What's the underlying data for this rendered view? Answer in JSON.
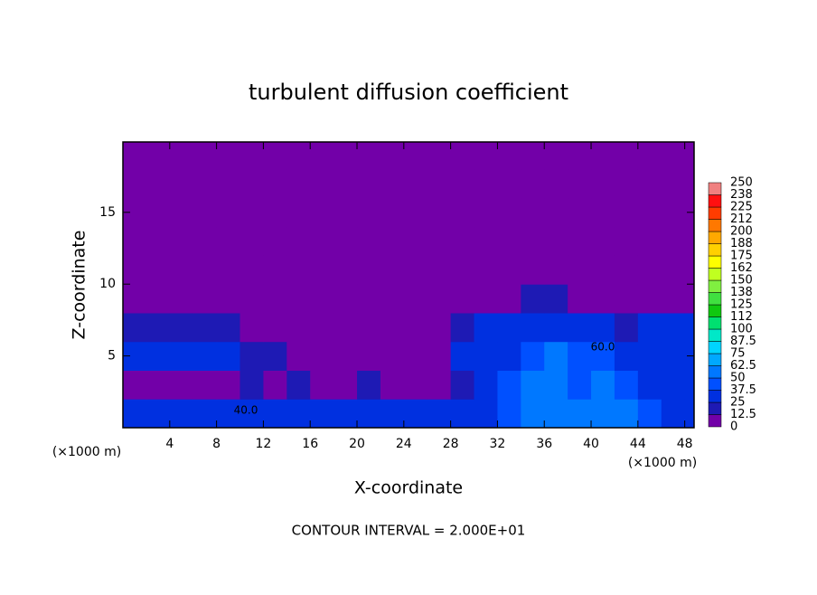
{
  "chart_data": {
    "type": "heatmap",
    "title": "turbulent diffusion coefficient",
    "x_label": "X-coordinate",
    "y_label": "Z-coordinate",
    "x_unit": "(×1000 m)",
    "y_unit": "(×1000 m)",
    "footer": "CONTOUR INTERVAL = 2.000E+01",
    "annotations": [
      "40.0",
      "60.0"
    ],
    "xlim": [
      0,
      48.8
    ],
    "ylim": [
      0,
      19.9
    ],
    "xticks": [
      4,
      8,
      12,
      16,
      20,
      24,
      28,
      32,
      36,
      40,
      44,
      48
    ],
    "yticks": [
      5,
      10,
      15
    ],
    "x": [
      0,
      2,
      4,
      6,
      8,
      10,
      12,
      14,
      16,
      18,
      20,
      22,
      24,
      26,
      28,
      30,
      32,
      34,
      36,
      38,
      40,
      42,
      44,
      46,
      48,
      50
    ],
    "y": [
      0,
      2,
      4,
      6,
      8,
      10,
      12,
      14,
      16,
      18,
      20
    ],
    "z": [
      [
        25,
        25,
        25,
        25,
        30,
        30,
        30,
        25,
        25,
        25,
        25,
        25,
        25,
        25,
        25,
        30,
        40,
        55,
        50,
        60,
        55,
        50,
        45,
        30,
        30
      ],
      [
        5,
        10,
        5,
        10,
        10,
        15,
        10,
        15,
        10,
        10,
        15,
        10,
        10,
        10,
        20,
        30,
        40,
        50,
        50,
        45,
        50,
        45,
        35,
        30,
        30
      ],
      [
        25,
        30,
        30,
        25,
        25,
        20,
        15,
        0,
        0,
        0,
        0,
        0,
        0,
        0,
        30,
        30,
        35,
        40,
        50,
        40,
        40,
        35,
        30,
        30,
        30
      ],
      [
        20,
        20,
        20,
        20,
        20,
        0,
        0,
        0,
        0,
        0,
        0,
        0,
        0,
        0,
        20,
        25,
        25,
        30,
        25,
        25,
        25,
        20,
        25,
        25,
        25
      ],
      [
        0,
        0,
        0,
        0,
        0,
        0,
        0,
        0,
        0,
        0,
        0,
        0,
        0,
        0,
        0,
        0,
        10,
        15,
        15,
        0,
        0,
        0,
        0,
        0,
        0
      ],
      [
        0,
        0,
        0,
        0,
        0,
        0,
        0,
        0,
        0,
        0,
        0,
        0,
        0,
        0,
        0,
        0,
        0,
        0,
        0,
        0,
        0,
        0,
        0,
        0,
        0
      ],
      [
        0,
        0,
        0,
        0,
        0,
        0,
        0,
        0,
        0,
        0,
        0,
        0,
        0,
        0,
        0,
        0,
        0,
        0,
        0,
        0,
        0,
        0,
        0,
        0,
        0
      ],
      [
        0,
        0,
        0,
        0,
        0,
        0,
        0,
        0,
        0,
        0,
        0,
        0,
        0,
        0,
        0,
        0,
        0,
        0,
        0,
        0,
        0,
        0,
        0,
        0,
        0
      ],
      [
        0,
        0,
        0,
        0,
        0,
        0,
        0,
        0,
        0,
        0,
        0,
        0,
        0,
        0,
        0,
        0,
        0,
        0,
        0,
        0,
        0,
        0,
        0,
        0,
        0
      ],
      [
        0,
        0,
        0,
        0,
        0,
        0,
        0,
        0,
        0,
        0,
        0,
        0,
        0,
        0,
        0,
        0,
        0,
        0,
        0,
        0,
        0,
        0,
        0,
        0,
        0
      ]
    ],
    "levels": [
      0,
      12.5,
      25,
      37.5,
      50,
      62.5,
      75,
      87.5,
      100,
      {
        "value": 112.5,
        "label": "112"
      },
      125,
      {
        "value": 137.5,
        "label": "138"
      },
      150,
      {
        "value": 162.5,
        "label": "162"
      },
      175,
      {
        "value": 187.5,
        "label": "188"
      },
      200,
      {
        "value": 212.5,
        "label": "212"
      },
      225,
      {
        "value": 237.5,
        "label": "238"
      },
      250
    ],
    "colors": [
      "#7200a8",
      "#1e1ab4",
      "#0030e0",
      "#0050ff",
      "#0078ff",
      "#00a8ff",
      "#00d4ff",
      "#00e8c8",
      "#00e070",
      "#10c810",
      "#40e040",
      "#80f040",
      "#c0ff20",
      "#ffff00",
      "#ffd000",
      "#ffa800",
      "#ff7800",
      "#ff3c00",
      "#ff1010",
      "#f08080"
    ]
  }
}
